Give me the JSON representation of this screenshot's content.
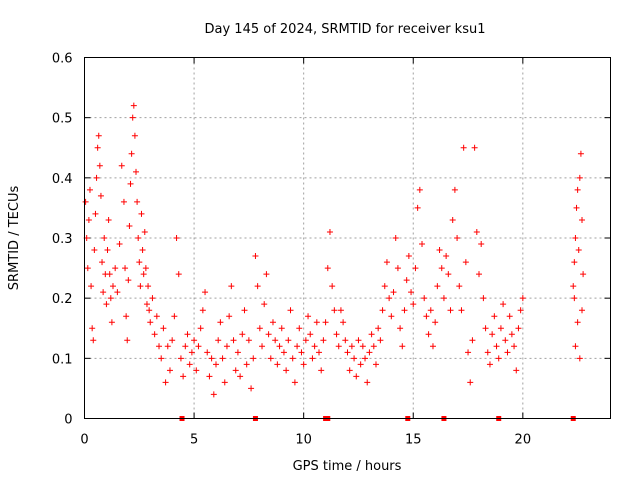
{
  "chart_data": {
    "type": "scatter",
    "title": "Day 145 of 2024, SRMTID for receiver ksu1",
    "xlabel": "GPS time / hours",
    "ylabel": "SRMTID / TECUs",
    "xlim": [
      0,
      24
    ],
    "ylim": [
      0,
      0.6
    ],
    "x_ticks": [
      0,
      5,
      10,
      15,
      20
    ],
    "y_ticks": [
      0,
      0.1,
      0.2,
      0.3,
      0.4,
      0.5,
      0.6
    ],
    "x_tick_labels": [
      "0",
      "5",
      "10",
      "15",
      "20"
    ],
    "y_tick_labels": [
      "0",
      "0.1",
      "0.2",
      "0.3",
      "0.4",
      "0.5",
      "0.6"
    ],
    "grid": true,
    "marker": "+",
    "color": "#ff0000",
    "series": [
      {
        "name": "SRMTID",
        "points": [
          [
            0.05,
            0.36
          ],
          [
            0.1,
            0.3
          ],
          [
            0.15,
            0.25
          ],
          [
            0.2,
            0.33
          ],
          [
            0.25,
            0.38
          ],
          [
            0.3,
            0.22
          ],
          [
            0.35,
            0.15
          ],
          [
            0.4,
            0.13
          ],
          [
            0.45,
            0.28
          ],
          [
            0.5,
            0.34
          ],
          [
            0.55,
            0.4
          ],
          [
            0.6,
            0.45
          ],
          [
            0.65,
            0.47
          ],
          [
            0.7,
            0.42
          ],
          [
            0.75,
            0.37
          ],
          [
            0.8,
            0.26
          ],
          [
            0.85,
            0.21
          ],
          [
            0.9,
            0.3
          ],
          [
            0.95,
            0.24
          ],
          [
            1.0,
            0.19
          ],
          [
            1.05,
            0.28
          ],
          [
            1.1,
            0.33
          ],
          [
            1.15,
            0.24
          ],
          [
            1.2,
            0.2
          ],
          [
            1.25,
            0.16
          ],
          [
            1.3,
            0.22
          ],
          [
            1.4,
            0.25
          ],
          [
            1.5,
            0.21
          ],
          [
            1.6,
            0.29
          ],
          [
            1.7,
            0.42
          ],
          [
            1.8,
            0.36
          ],
          [
            1.85,
            0.25
          ],
          [
            1.9,
            0.17
          ],
          [
            1.95,
            0.13
          ],
          [
            2.0,
            0.23
          ],
          [
            2.05,
            0.32
          ],
          [
            2.1,
            0.39
          ],
          [
            2.15,
            0.44
          ],
          [
            2.2,
            0.5
          ],
          [
            2.25,
            0.52
          ],
          [
            2.3,
            0.47
          ],
          [
            2.35,
            0.41
          ],
          [
            2.4,
            0.36
          ],
          [
            2.45,
            0.3
          ],
          [
            2.5,
            0.26
          ],
          [
            2.55,
            0.22
          ],
          [
            2.6,
            0.34
          ],
          [
            2.65,
            0.28
          ],
          [
            2.7,
            0.24
          ],
          [
            2.75,
            0.31
          ],
          [
            2.8,
            0.25
          ],
          [
            2.85,
            0.19
          ],
          [
            2.9,
            0.22
          ],
          [
            2.95,
            0.18
          ],
          [
            3.0,
            0.16
          ],
          [
            3.1,
            0.2
          ],
          [
            3.2,
            0.14
          ],
          [
            3.3,
            0.17
          ],
          [
            3.4,
            0.12
          ],
          [
            3.5,
            0.1
          ],
          [
            3.6,
            0.15
          ],
          [
            3.7,
            0.06
          ],
          [
            3.8,
            0.12
          ],
          [
            3.9,
            0.08
          ],
          [
            4.0,
            0.13
          ],
          [
            4.1,
            0.17
          ],
          [
            4.2,
            0.3
          ],
          [
            4.3,
            0.24
          ],
          [
            4.4,
            0.1
          ],
          [
            4.5,
            0.07
          ],
          [
            4.6,
            0.12
          ],
          [
            4.7,
            0.14
          ],
          [
            4.8,
            0.09
          ],
          [
            4.9,
            0.11
          ],
          [
            5.0,
            0.13
          ],
          [
            5.1,
            0.08
          ],
          [
            5.2,
            0.12
          ],
          [
            5.3,
            0.15
          ],
          [
            5.4,
            0.18
          ],
          [
            5.5,
            0.21
          ],
          [
            5.6,
            0.11
          ],
          [
            5.7,
            0.07
          ],
          [
            5.8,
            0.1
          ],
          [
            5.9,
            0.04
          ],
          [
            6.0,
            0.09
          ],
          [
            6.1,
            0.13
          ],
          [
            6.2,
            0.16
          ],
          [
            6.3,
            0.1
          ],
          [
            6.4,
            0.06
          ],
          [
            6.5,
            0.12
          ],
          [
            6.6,
            0.17
          ],
          [
            6.7,
            0.22
          ],
          [
            6.8,
            0.13
          ],
          [
            6.9,
            0.08
          ],
          [
            7.0,
            0.11
          ],
          [
            7.1,
            0.07
          ],
          [
            7.2,
            0.14
          ],
          [
            7.3,
            0.18
          ],
          [
            7.4,
            0.09
          ],
          [
            7.5,
            0.13
          ],
          [
            7.6,
            0.05
          ],
          [
            7.7,
            0.1
          ],
          [
            7.8,
            0.27
          ],
          [
            7.9,
            0.22
          ],
          [
            8.0,
            0.15
          ],
          [
            8.1,
            0.12
          ],
          [
            8.2,
            0.19
          ],
          [
            8.3,
            0.24
          ],
          [
            8.4,
            0.14
          ],
          [
            8.5,
            0.1
          ],
          [
            8.6,
            0.16
          ],
          [
            8.7,
            0.13
          ],
          [
            8.8,
            0.09
          ],
          [
            8.9,
            0.12
          ],
          [
            9.0,
            0.15
          ],
          [
            9.1,
            0.11
          ],
          [
            9.2,
            0.08
          ],
          [
            9.3,
            0.13
          ],
          [
            9.4,
            0.18
          ],
          [
            9.5,
            0.1
          ],
          [
            9.6,
            0.06
          ],
          [
            9.7,
            0.12
          ],
          [
            9.8,
            0.15
          ],
          [
            9.9,
            0.11
          ],
          [
            10.0,
            0.09
          ],
          [
            10.1,
            0.13
          ],
          [
            10.2,
            0.17
          ],
          [
            10.3,
            0.14
          ],
          [
            10.4,
            0.1
          ],
          [
            10.5,
            0.12
          ],
          [
            10.6,
            0.16
          ],
          [
            10.7,
            0.11
          ],
          [
            10.8,
            0.08
          ],
          [
            10.9,
            0.13
          ],
          [
            11.0,
            0.16
          ],
          [
            11.1,
            0.25
          ],
          [
            11.2,
            0.31
          ],
          [
            11.3,
            0.22
          ],
          [
            11.4,
            0.18
          ],
          [
            11.5,
            0.14
          ],
          [
            11.6,
            0.12
          ],
          [
            11.7,
            0.18
          ],
          [
            11.8,
            0.16
          ],
          [
            11.9,
            0.13
          ],
          [
            12.0,
            0.11
          ],
          [
            12.1,
            0.08
          ],
          [
            12.2,
            0.12
          ],
          [
            12.3,
            0.1
          ],
          [
            12.4,
            0.07
          ],
          [
            12.5,
            0.13
          ],
          [
            12.6,
            0.09
          ],
          [
            12.7,
            0.12
          ],
          [
            12.8,
            0.1
          ],
          [
            12.9,
            0.06
          ],
          [
            13.0,
            0.11
          ],
          [
            13.1,
            0.14
          ],
          [
            13.2,
            0.12
          ],
          [
            13.3,
            0.09
          ],
          [
            13.4,
            0.15
          ],
          [
            13.5,
            0.13
          ],
          [
            13.6,
            0.18
          ],
          [
            13.7,
            0.22
          ],
          [
            13.8,
            0.26
          ],
          [
            13.9,
            0.2
          ],
          [
            14.0,
            0.17
          ],
          [
            14.1,
            0.21
          ],
          [
            14.2,
            0.3
          ],
          [
            14.3,
            0.25
          ],
          [
            14.4,
            0.15
          ],
          [
            14.5,
            0.12
          ],
          [
            14.6,
            0.18
          ],
          [
            14.7,
            0.23
          ],
          [
            14.8,
            0.27
          ],
          [
            14.9,
            0.21
          ],
          [
            15.0,
            0.19
          ],
          [
            15.1,
            0.25
          ],
          [
            15.2,
            0.35
          ],
          [
            15.3,
            0.38
          ],
          [
            15.4,
            0.29
          ],
          [
            15.5,
            0.2
          ],
          [
            15.6,
            0.17
          ],
          [
            15.7,
            0.14
          ],
          [
            15.8,
            0.18
          ],
          [
            15.9,
            0.12
          ],
          [
            16.0,
            0.16
          ],
          [
            16.1,
            0.22
          ],
          [
            16.2,
            0.28
          ],
          [
            16.3,
            0.25
          ],
          [
            16.4,
            0.2
          ],
          [
            16.5,
            0.27
          ],
          [
            16.6,
            0.24
          ],
          [
            16.7,
            0.18
          ],
          [
            16.8,
            0.33
          ],
          [
            16.9,
            0.38
          ],
          [
            17.0,
            0.3
          ],
          [
            17.1,
            0.22
          ],
          [
            17.2,
            0.18
          ],
          [
            17.3,
            0.45
          ],
          [
            17.4,
            0.26
          ],
          [
            17.5,
            0.11
          ],
          [
            17.6,
            0.06
          ],
          [
            17.7,
            0.13
          ],
          [
            17.8,
            0.45
          ],
          [
            17.9,
            0.31
          ],
          [
            18.0,
            0.24
          ],
          [
            18.1,
            0.29
          ],
          [
            18.2,
            0.2
          ],
          [
            18.3,
            0.15
          ],
          [
            18.4,
            0.11
          ],
          [
            18.5,
            0.09
          ],
          [
            18.6,
            0.14
          ],
          [
            18.7,
            0.17
          ],
          [
            18.8,
            0.12
          ],
          [
            18.9,
            0.1
          ],
          [
            19.0,
            0.15
          ],
          [
            19.1,
            0.19
          ],
          [
            19.2,
            0.13
          ],
          [
            19.3,
            0.11
          ],
          [
            19.4,
            0.17
          ],
          [
            19.5,
            0.14
          ],
          [
            19.6,
            0.12
          ],
          [
            19.7,
            0.08
          ],
          [
            19.8,
            0.15
          ],
          [
            19.9,
            0.18
          ],
          [
            20.0,
            0.2
          ],
          [
            22.3,
            0.22
          ],
          [
            22.35,
            0.26
          ],
          [
            22.4,
            0.3
          ],
          [
            22.45,
            0.35
          ],
          [
            22.5,
            0.38
          ],
          [
            22.55,
            0.28
          ],
          [
            22.6,
            0.4
          ],
          [
            22.65,
            0.44
          ],
          [
            22.7,
            0.33
          ],
          [
            22.75,
            0.24
          ],
          [
            22.4,
            0.12
          ],
          [
            22.5,
            0.16
          ],
          [
            22.6,
            0.1
          ],
          [
            22.7,
            0.18
          ],
          [
            22.35,
            0.2
          ]
        ]
      },
      {
        "name": "data-gap-markers",
        "points": [
          [
            4.45,
            0
          ],
          [
            7.8,
            0
          ],
          [
            11.0,
            0
          ],
          [
            11.1,
            0
          ],
          [
            14.75,
            0
          ],
          [
            16.4,
            0
          ],
          [
            18.9,
            0
          ],
          [
            22.3,
            0
          ]
        ]
      }
    ]
  }
}
